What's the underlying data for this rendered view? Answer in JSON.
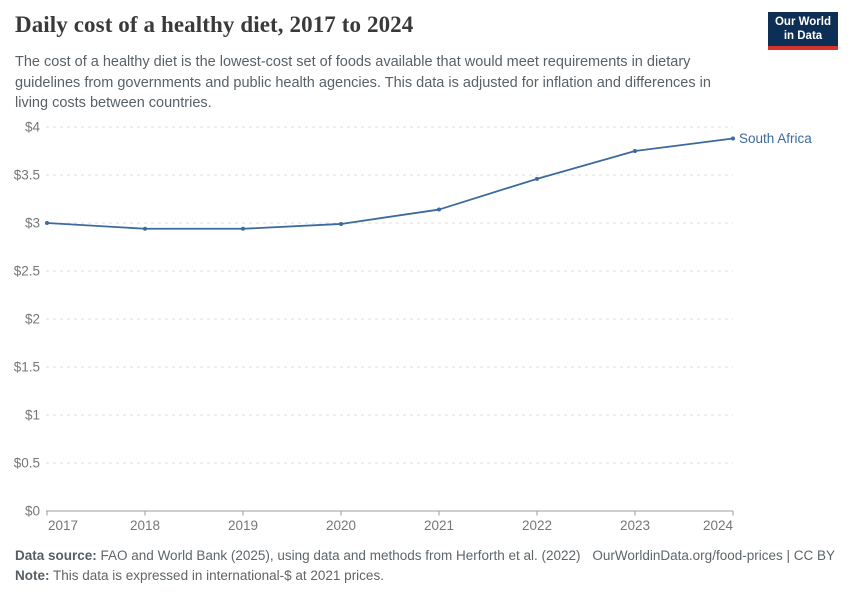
{
  "header": {
    "title": "Daily cost of a healthy diet, 2017 to 2024",
    "subtitle": "The cost of a healthy diet is the lowest-cost set of foods available that would meet requirements in dietary guidelines from governments and public health agencies. This data is adjusted for inflation and differences in living costs between countries.",
    "logo": {
      "line1": "Our World",
      "line2": "in Data",
      "bg_color": "#0d2e55",
      "accent_color": "#d7332e"
    }
  },
  "chart_data": {
    "type": "line",
    "title": "Daily cost of a healthy diet, 2017 to 2024",
    "x": [
      2017,
      2018,
      2019,
      2020,
      2021,
      2022,
      2023,
      2024
    ],
    "xtick_labels": [
      "2017",
      "2018",
      "2019",
      "2020",
      "2021",
      "2022",
      "2023",
      "2024"
    ],
    "series": [
      {
        "name": "South Africa",
        "color": "#3d6a9d",
        "values": [
          3.0,
          2.94,
          2.94,
          2.99,
          3.14,
          3.46,
          3.75,
          3.88
        ]
      }
    ],
    "xlabel": "",
    "ylabel": "",
    "ylim": [
      0,
      4
    ],
    "yticks": [
      0,
      0.5,
      1,
      1.5,
      2,
      2.5,
      3,
      3.5,
      4
    ],
    "ytick_labels": [
      "$0",
      "$0.5",
      "$1",
      "$1.5",
      "$2",
      "$2.5",
      "$3",
      "$3.5",
      "$4"
    ],
    "grid": "horizontal-dashed",
    "legend_position": "end-of-line-label",
    "currency_note": "international-$ at 2021 prices"
  },
  "footer": {
    "datasource_label": "Data source:",
    "datasource_text": " FAO and World Bank (2025), using data and methods from Herforth et al. (2022)",
    "link_text": "OurWorldinData.org/food-prices | CC BY",
    "note_label": "Note:",
    "note_text": " This data is expressed in international-$ at 2021 prices."
  }
}
